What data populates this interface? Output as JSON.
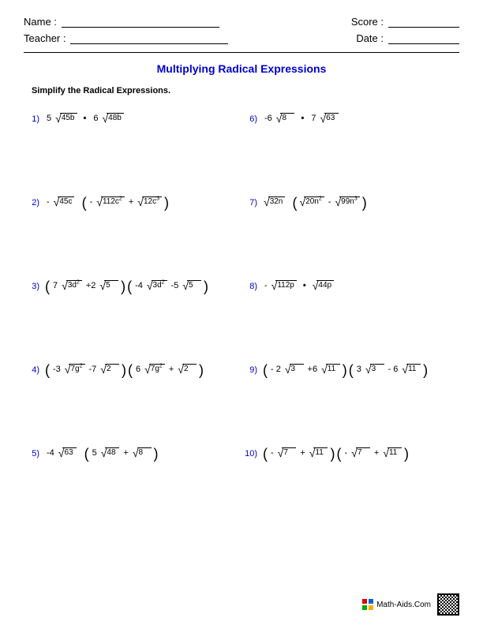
{
  "header": {
    "name_label": "Name :",
    "teacher_label": "Teacher :",
    "score_label": "Score :",
    "date_label": "Date :"
  },
  "title": {
    "text": "Multiplying Radical Expressions",
    "color": "#0000cc"
  },
  "instructions": "Simplify the Radical Expressions.",
  "colors": {
    "number_color": "#0000cc",
    "text_color": "#000000",
    "background": "#ffffff"
  },
  "problems": [
    {
      "n": "1)",
      "terms": [
        {
          "t": "coef",
          "v": "5"
        },
        {
          "t": "sqrt",
          "v": "45b"
        },
        {
          "t": "dot"
        },
        {
          "t": "coef",
          "v": "6"
        },
        {
          "t": "sqrt",
          "v": "48b"
        }
      ]
    },
    {
      "n": "6)",
      "terms": [
        {
          "t": "coef",
          "v": "-6"
        },
        {
          "t": "sqrt",
          "v": "8"
        },
        {
          "t": "dot"
        },
        {
          "t": "coef",
          "v": "7"
        },
        {
          "t": "sqrt",
          "v": "63"
        }
      ]
    },
    {
      "n": "2)",
      "terms": [
        {
          "t": "coef",
          "v": "-"
        },
        {
          "t": "sqrt",
          "v": "45c"
        },
        {
          "t": "sp"
        },
        {
          "t": "lp"
        },
        {
          "t": "coef",
          "v": "-"
        },
        {
          "t": "sqrt",
          "v": "112c",
          "sup": "2"
        },
        {
          "t": "plus",
          "v": "+"
        },
        {
          "t": "sqrt",
          "v": "12c",
          "sup": "3"
        },
        {
          "t": "rp"
        }
      ]
    },
    {
      "n": "7)",
      "terms": [
        {
          "t": "sqrt",
          "v": "32n"
        },
        {
          "t": "sp"
        },
        {
          "t": "lp"
        },
        {
          "t": "sqrt",
          "v": "20n",
          "sup": "2"
        },
        {
          "t": "plus",
          "v": "-"
        },
        {
          "t": "sqrt",
          "v": "99n",
          "sup": "3"
        },
        {
          "t": "rp"
        }
      ]
    },
    {
      "n": "3)",
      "terms": [
        {
          "t": "lp"
        },
        {
          "t": "coef",
          "v": "7"
        },
        {
          "t": "sqrt",
          "v": "3d",
          "sup": "2"
        },
        {
          "t": "plus",
          "v": "+2"
        },
        {
          "t": "sqrt",
          "v": "5"
        },
        {
          "t": "rp"
        },
        {
          "t": "lp"
        },
        {
          "t": "coef",
          "v": "-4"
        },
        {
          "t": "sqrt",
          "v": "3d",
          "sup": "2"
        },
        {
          "t": "plus",
          "v": "-5"
        },
        {
          "t": "sqrt",
          "v": "5"
        },
        {
          "t": "rp"
        }
      ]
    },
    {
      "n": "8)",
      "terms": [
        {
          "t": "coef",
          "v": "-"
        },
        {
          "t": "sqrt",
          "v": "112p"
        },
        {
          "t": "dot"
        },
        {
          "t": "sqrt",
          "v": "44p"
        }
      ]
    },
    {
      "n": "4)",
      "terms": [
        {
          "t": "lp"
        },
        {
          "t": "coef",
          "v": "-3"
        },
        {
          "t": "sqrt",
          "v": "7g",
          "sup": "2"
        },
        {
          "t": "plus",
          "v": "-7"
        },
        {
          "t": "sqrt",
          "v": "2"
        },
        {
          "t": "rp"
        },
        {
          "t": "lp"
        },
        {
          "t": "coef",
          "v": "6"
        },
        {
          "t": "sqrt",
          "v": "7g",
          "sup": "2"
        },
        {
          "t": "plus",
          "v": "+"
        },
        {
          "t": "sqrt",
          "v": "2"
        },
        {
          "t": "rp"
        }
      ]
    },
    {
      "n": "9)",
      "terms": [
        {
          "t": "lp"
        },
        {
          "t": "coef",
          "v": "- 2"
        },
        {
          "t": "sqrt",
          "v": "3"
        },
        {
          "t": "plus",
          "v": "+6"
        },
        {
          "t": "sqrt",
          "v": "11"
        },
        {
          "t": "rp"
        },
        {
          "t": "lp"
        },
        {
          "t": "coef",
          "v": "3"
        },
        {
          "t": "sqrt",
          "v": "3"
        },
        {
          "t": "plus",
          "v": "- 6"
        },
        {
          "t": "sqrt",
          "v": "11"
        },
        {
          "t": "rp"
        }
      ]
    },
    {
      "n": "5)",
      "terms": [
        {
          "t": "coef",
          "v": "-4"
        },
        {
          "t": "sqrt",
          "v": "63"
        },
        {
          "t": "sp"
        },
        {
          "t": "lp"
        },
        {
          "t": "coef",
          "v": "5"
        },
        {
          "t": "sqrt",
          "v": "48"
        },
        {
          "t": "plus",
          "v": "+"
        },
        {
          "t": "sqrt",
          "v": "8"
        },
        {
          "t": "rp"
        }
      ]
    },
    {
      "n": "10)",
      "terms": [
        {
          "t": "lp"
        },
        {
          "t": "coef",
          "v": "-"
        },
        {
          "t": "sqrt",
          "v": "7"
        },
        {
          "t": "plus",
          "v": "+"
        },
        {
          "t": "sqrt",
          "v": "11"
        },
        {
          "t": "rp"
        },
        {
          "t": "lp"
        },
        {
          "t": "coef",
          "v": "-"
        },
        {
          "t": "sqrt",
          "v": "7"
        },
        {
          "t": "plus",
          "v": "+"
        },
        {
          "t": "sqrt",
          "v": "11"
        },
        {
          "t": "rp"
        }
      ]
    }
  ],
  "footer": {
    "text": "Math-Aids.Com"
  }
}
